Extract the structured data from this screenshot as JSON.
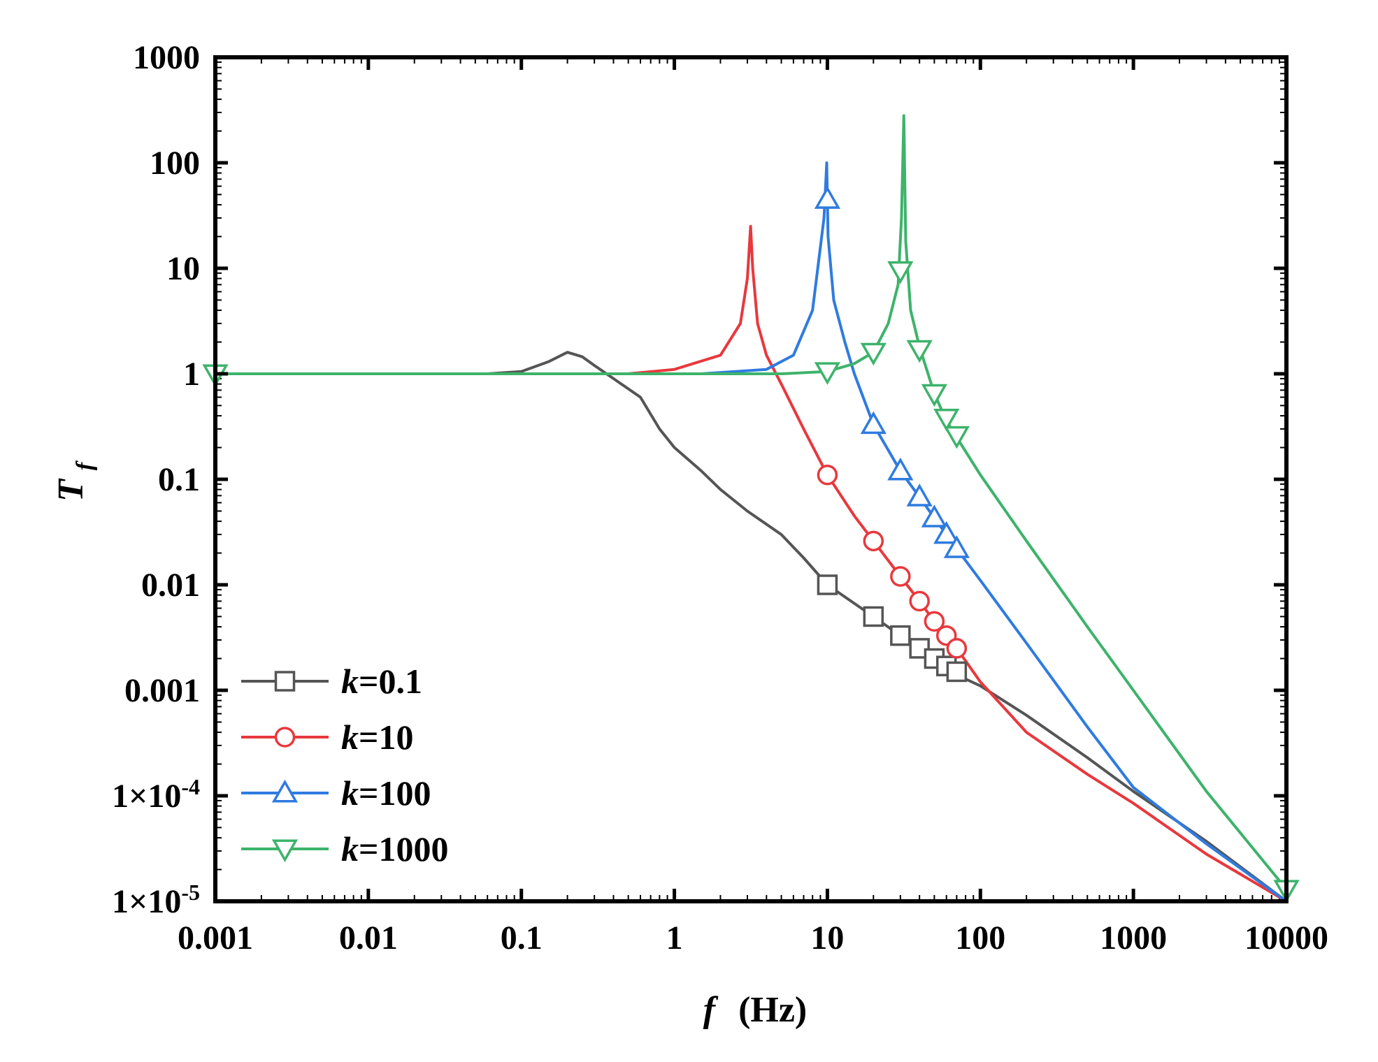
{
  "chart_data": {
    "type": "line",
    "xscale": "log",
    "yscale": "log",
    "xlim": [
      0.001,
      10000
    ],
    "ylim": [
      1e-05,
      1000
    ],
    "xlabel": {
      "var": "f",
      "unit": "(Hz)"
    },
    "ylabel": {
      "var": "T",
      "sub": "f"
    },
    "x_ticks": [
      {
        "value": 0.001,
        "label": "0.001"
      },
      {
        "value": 0.01,
        "label": "0.01"
      },
      {
        "value": 0.1,
        "label": "0.1"
      },
      {
        "value": 1,
        "label": "1"
      },
      {
        "value": 10,
        "label": "10"
      },
      {
        "value": 100,
        "label": "100"
      },
      {
        "value": 1000,
        "label": "1000"
      },
      {
        "value": 10000,
        "label": "10000"
      }
    ],
    "y_ticks": [
      {
        "value": 1000,
        "label": "1000"
      },
      {
        "value": 100,
        "label": "100"
      },
      {
        "value": 10,
        "label": "10"
      },
      {
        "value": 1,
        "label": "1"
      },
      {
        "value": 0.1,
        "label": "0.1"
      },
      {
        "value": 0.01,
        "label": "0.01"
      },
      {
        "value": 0.001,
        "label": "0.001"
      },
      {
        "value": 0.0001,
        "label": "1×10",
        "exp": "-4"
      },
      {
        "value": 1e-05,
        "label": "1×10",
        "exp": "-5"
      }
    ],
    "series": [
      {
        "name": "k=0.1",
        "k_symbol": "k",
        "k_value": "=0.1",
        "color": "#555555",
        "marker": "square",
        "points": [
          [
            0.06,
            1.0
          ],
          [
            0.1,
            1.05
          ],
          [
            0.15,
            1.3
          ],
          [
            0.2,
            1.6
          ],
          [
            0.25,
            1.45
          ],
          [
            0.3,
            1.2
          ],
          [
            0.4,
            0.9
          ],
          [
            0.6,
            0.6
          ],
          [
            0.8,
            0.3
          ],
          [
            1,
            0.2
          ],
          [
            1.5,
            0.12
          ],
          [
            2,
            0.08
          ],
          [
            3,
            0.05
          ],
          [
            5,
            0.03
          ],
          [
            7,
            0.018
          ],
          [
            10,
            0.01
          ],
          [
            20,
            0.005
          ],
          [
            30,
            0.0033
          ],
          [
            50,
            0.002
          ],
          [
            70,
            0.0014
          ],
          [
            100,
            0.0011
          ],
          [
            200,
            0.00058
          ],
          [
            500,
            0.00023
          ],
          [
            1000,
            0.00011
          ],
          [
            3000,
            3.7e-05
          ],
          [
            10000,
            1e-05
          ]
        ],
        "markers": [
          [
            10,
            0.01
          ],
          [
            20,
            0.005
          ],
          [
            30,
            0.0033
          ],
          [
            40,
            0.0025
          ],
          [
            50,
            0.002
          ],
          [
            60,
            0.0017
          ],
          [
            70,
            0.0015
          ]
        ]
      },
      {
        "name": "k=10",
        "k_symbol": "k",
        "k_value": "=10",
        "color": "#e8383d",
        "marker": "circle",
        "points": [
          [
            0.001,
            1.0
          ],
          [
            0.5,
            1.0
          ],
          [
            1,
            1.1
          ],
          [
            2,
            1.5
          ],
          [
            2.7,
            3
          ],
          [
            3.0,
            8
          ],
          [
            3.15,
            25
          ],
          [
            3.25,
            10
          ],
          [
            3.5,
            3
          ],
          [
            4,
            1.5
          ],
          [
            5,
            0.8
          ],
          [
            7,
            0.3
          ],
          [
            10,
            0.11
          ],
          [
            15,
            0.045
          ],
          [
            20,
            0.026
          ],
          [
            30,
            0.012
          ],
          [
            40,
            0.007
          ],
          [
            50,
            0.0045
          ],
          [
            60,
            0.0033
          ],
          [
            70,
            0.0025
          ],
          [
            100,
            0.0012
          ],
          [
            200,
            0.0004
          ],
          [
            500,
            0.00016
          ],
          [
            1000,
            8.5e-05
          ],
          [
            3000,
            2.8e-05
          ],
          [
            10000,
            1e-05
          ]
        ],
        "markers": [
          [
            10,
            0.11
          ],
          [
            20,
            0.026
          ],
          [
            30,
            0.012
          ],
          [
            40,
            0.007
          ],
          [
            50,
            0.0045
          ],
          [
            60,
            0.0033
          ],
          [
            70,
            0.0025
          ]
        ]
      },
      {
        "name": "k=100",
        "k_symbol": "k",
        "k_value": "=100",
        "color": "#2f7be0",
        "marker": "triangle-up",
        "points": [
          [
            0.001,
            1.0
          ],
          [
            1.5,
            1.0
          ],
          [
            4,
            1.1
          ],
          [
            6,
            1.5
          ],
          [
            8,
            4
          ],
          [
            9.5,
            30
          ],
          [
            9.9,
            100
          ],
          [
            10.1,
            20
          ],
          [
            11,
            5
          ],
          [
            13,
            2
          ],
          [
            15,
            1
          ],
          [
            20,
            0.33
          ],
          [
            30,
            0.12
          ],
          [
            40,
            0.068
          ],
          [
            50,
            0.043
          ],
          [
            60,
            0.03
          ],
          [
            70,
            0.022
          ],
          [
            100,
            0.011
          ],
          [
            200,
            0.0028
          ],
          [
            500,
            0.00045
          ],
          [
            1000,
            0.00012
          ],
          [
            3000,
            3.5e-05
          ],
          [
            10000,
            1e-05
          ]
        ],
        "markers": [
          [
            10,
            45
          ],
          [
            20,
            0.33
          ],
          [
            30,
            0.12
          ],
          [
            40,
            0.068
          ],
          [
            50,
            0.043
          ],
          [
            60,
            0.03
          ],
          [
            70,
            0.022
          ]
        ]
      },
      {
        "name": "k=1000",
        "k_symbol": "k",
        "k_value": "=1000",
        "color": "#3db36b",
        "marker": "triangle-down",
        "points": [
          [
            0.001,
            1.0
          ],
          [
            5,
            1.0
          ],
          [
            10,
            1.05
          ],
          [
            15,
            1.25
          ],
          [
            20,
            1.6
          ],
          [
            25,
            3
          ],
          [
            29,
            7
          ],
          [
            30.5,
            30
          ],
          [
            31.6,
            280
          ],
          [
            32.5,
            18
          ],
          [
            35,
            4
          ],
          [
            40,
            1.8
          ],
          [
            50,
            0.65
          ],
          [
            60,
            0.36
          ],
          [
            70,
            0.25
          ],
          [
            100,
            0.11
          ],
          [
            200,
            0.026
          ],
          [
            500,
            0.004
          ],
          [
            1000,
            0.001
          ],
          [
            3000,
            0.00011
          ],
          [
            10000,
            1.3e-05
          ]
        ],
        "markers": [
          [
            0.001,
            1.0
          ],
          [
            10,
            1.05
          ],
          [
            20,
            1.6
          ],
          [
            30,
            9.5
          ],
          [
            40,
            1.7
          ],
          [
            50,
            0.65
          ],
          [
            60,
            0.38
          ],
          [
            70,
            0.26
          ],
          [
            10000,
            1.3e-05
          ]
        ]
      }
    ]
  }
}
